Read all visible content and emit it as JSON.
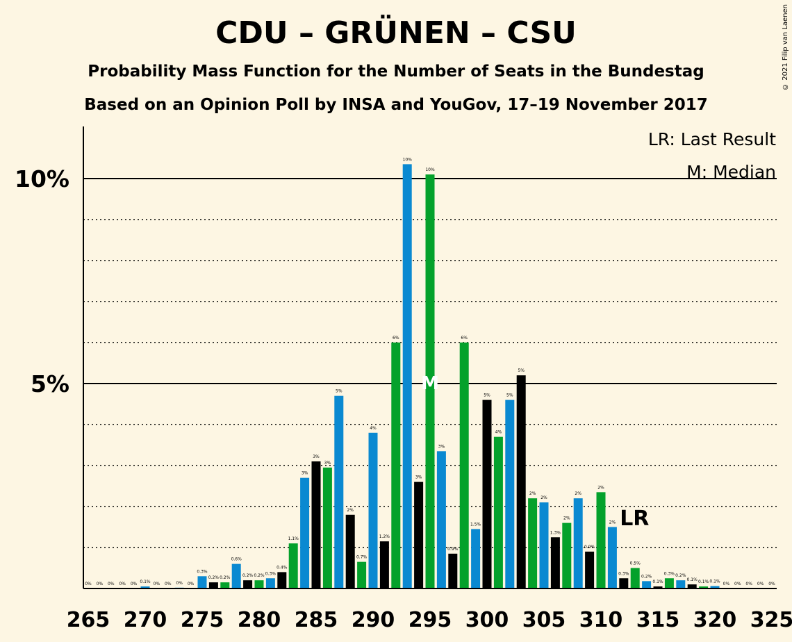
{
  "title": "CDU – GRÜNEN – CSU",
  "subtitle1": "Probability Mass Function for the Number of Seats in the Bundestag",
  "subtitle2": "Based on an Opinion Poll by INSA and YouGov, 17–19 November 2017",
  "copyright": "© 2021 Filip van Laenen",
  "legend": {
    "lr": "LR: Last Result",
    "median": "M: Median"
  },
  "colors": {
    "background": "#fdf6e3",
    "blue": "#0a89d1",
    "green": "#04a12b",
    "black": "#000000"
  },
  "chart_data": {
    "type": "bar",
    "xlabel": "",
    "ylabel": "",
    "xlim": [
      265,
      325
    ],
    "ylim": [
      0,
      11
    ],
    "ytick_labels": [
      {
        "value": 5,
        "label": "5%"
      },
      {
        "value": 10,
        "label": "10%"
      }
    ],
    "xticks": [
      265,
      270,
      275,
      280,
      285,
      290,
      295,
      300,
      305,
      310,
      315,
      320,
      325
    ],
    "last_result": 313,
    "last_result_label": "LR",
    "median": 295,
    "median_label": "M",
    "bars": [
      {
        "x": 265,
        "value": 0,
        "label": "0%",
        "color": "black"
      },
      {
        "x": 266,
        "value": 0,
        "label": "0%",
        "color": "green"
      },
      {
        "x": 267,
        "value": 0,
        "label": "0%",
        "color": "blue"
      },
      {
        "x": 268,
        "value": 0,
        "label": "0%",
        "color": "black"
      },
      {
        "x": 269,
        "value": 0,
        "label": "0%",
        "color": "green"
      },
      {
        "x": 270,
        "value": 0.05,
        "label": "0.1%",
        "color": "blue"
      },
      {
        "x": 271,
        "value": 0,
        "label": "0%",
        "color": "black"
      },
      {
        "x": 272,
        "value": 0,
        "label": "0%",
        "color": "green"
      },
      {
        "x": 273,
        "value": 0.02,
        "label": "0%",
        "color": "blue"
      },
      {
        "x": 274,
        "value": 0,
        "label": "0%",
        "color": "black"
      },
      {
        "x": 275,
        "value": 0.3,
        "label": "0.3%",
        "color": "blue"
      },
      {
        "x": 276,
        "value": 0.15,
        "label": "0.2%",
        "color": "black"
      },
      {
        "x": 277,
        "value": 0.15,
        "label": "0.2%",
        "color": "green"
      },
      {
        "x": 278,
        "value": 0.6,
        "label": "0.6%",
        "color": "blue"
      },
      {
        "x": 279,
        "value": 0.2,
        "label": "0.2%",
        "color": "black"
      },
      {
        "x": 280,
        "value": 0.2,
        "label": "0.2%",
        "color": "green"
      },
      {
        "x": 281,
        "value": 0.25,
        "label": "0.3%",
        "color": "blue"
      },
      {
        "x": 282,
        "value": 0.4,
        "label": "0.4%",
        "color": "black"
      },
      {
        "x": 283,
        "value": 1.1,
        "label": "1.1%",
        "color": "green"
      },
      {
        "x": 284,
        "value": 2.7,
        "label": "3%",
        "color": "blue"
      },
      {
        "x": 285,
        "value": 3.1,
        "label": "3%",
        "color": "black"
      },
      {
        "x": 286,
        "value": 2.95,
        "label": "3%",
        "color": "green"
      },
      {
        "x": 287,
        "value": 4.7,
        "label": "5%",
        "color": "blue"
      },
      {
        "x": 288,
        "value": 1.8,
        "label": "2%",
        "color": "black"
      },
      {
        "x": 289,
        "value": 0.65,
        "label": "0.7%",
        "color": "green"
      },
      {
        "x": 290,
        "value": 3.8,
        "label": "4%",
        "color": "blue"
      },
      {
        "x": 291,
        "value": 1.15,
        "label": "1.2%",
        "color": "black"
      },
      {
        "x": 292,
        "value": 6.0,
        "label": "6%",
        "color": "green"
      },
      {
        "x": 293,
        "value": 10.35,
        "label": "10%",
        "color": "blue"
      },
      {
        "x": 294,
        "value": 2.6,
        "label": "3%",
        "color": "black"
      },
      {
        "x": 295,
        "value": 10.1,
        "label": "10%",
        "color": "green"
      },
      {
        "x": 296,
        "value": 3.35,
        "label": "3%",
        "color": "blue"
      },
      {
        "x": 297,
        "value": 0.85,
        "label": "0.9%",
        "color": "black"
      },
      {
        "x": 298,
        "value": 6.0,
        "label": "6%",
        "color": "green"
      },
      {
        "x": 299,
        "value": 1.45,
        "label": "1.5%",
        "color": "blue"
      },
      {
        "x": 300,
        "value": 4.6,
        "label": "5%",
        "color": "black"
      },
      {
        "x": 301,
        "value": 3.7,
        "label": "4%",
        "color": "green"
      },
      {
        "x": 302,
        "value": 4.6,
        "label": "5%",
        "color": "blue"
      },
      {
        "x": 303,
        "value": 5.2,
        "label": "5%",
        "color": "black"
      },
      {
        "x": 304,
        "value": 2.2,
        "label": "2%",
        "color": "green"
      },
      {
        "x": 305,
        "value": 2.1,
        "label": "2%",
        "color": "blue"
      },
      {
        "x": 306,
        "value": 1.25,
        "label": "1.3%",
        "color": "black"
      },
      {
        "x": 307,
        "value": 1.6,
        "label": "2%",
        "color": "green"
      },
      {
        "x": 308,
        "value": 2.2,
        "label": "2%",
        "color": "blue"
      },
      {
        "x": 309,
        "value": 0.9,
        "label": "0.9%",
        "color": "black"
      },
      {
        "x": 310,
        "value": 2.35,
        "label": "2%",
        "color": "green"
      },
      {
        "x": 311,
        "value": 1.5,
        "label": "2%",
        "color": "blue"
      },
      {
        "x": 312,
        "value": 0.25,
        "label": "0.3%",
        "color": "black"
      },
      {
        "x": 313,
        "value": 0.5,
        "label": "0.5%",
        "color": "green"
      },
      {
        "x": 314,
        "value": 0.18,
        "label": "0.2%",
        "color": "blue"
      },
      {
        "x": 315,
        "value": 0.05,
        "label": "0.1%",
        "color": "black"
      },
      {
        "x": 316,
        "value": 0.25,
        "label": "0.3%",
        "color": "green"
      },
      {
        "x": 317,
        "value": 0.2,
        "label": "0.2%",
        "color": "blue"
      },
      {
        "x": 318,
        "value": 0.1,
        "label": "0.1%",
        "color": "black"
      },
      {
        "x": 319,
        "value": 0.05,
        "label": "0.1%",
        "color": "green"
      },
      {
        "x": 320,
        "value": 0.06,
        "label": "0.1%",
        "color": "blue"
      },
      {
        "x": 321,
        "value": 0,
        "label": "0%",
        "color": "black"
      },
      {
        "x": 322,
        "value": 0,
        "label": "0%",
        "color": "green"
      },
      {
        "x": 323,
        "value": 0,
        "label": "0%",
        "color": "blue"
      },
      {
        "x": 324,
        "value": 0,
        "label": "0%",
        "color": "black"
      },
      {
        "x": 325,
        "value": 0,
        "label": "0%",
        "color": "green"
      }
    ]
  }
}
